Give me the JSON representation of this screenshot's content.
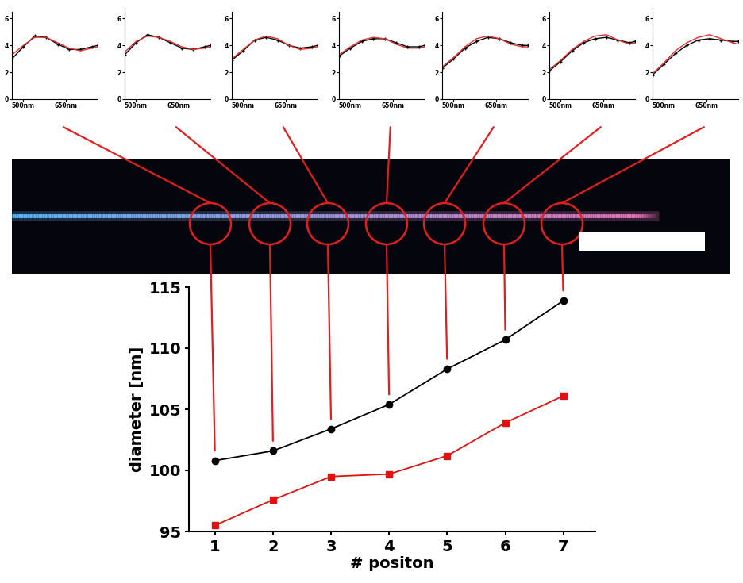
{
  "chart_data": [
    {
      "type": "line",
      "x": [
        460,
        500,
        540,
        580,
        620,
        660,
        700,
        740,
        760
      ],
      "xlim": [
        460,
        760
      ],
      "xticks": [
        {
          "value": 500,
          "label": "500nm"
        },
        {
          "value": 650,
          "label": "650nm"
        }
      ],
      "ylim": [
        0,
        6.5
      ],
      "yticks": [
        0,
        2,
        4,
        6
      ],
      "series": [
        {
          "color": "#000000",
          "marker": "plus",
          "values": [
            3.0,
            3.9,
            4.7,
            4.6,
            4.1,
            3.7,
            3.7,
            3.9,
            4.0
          ]
        },
        {
          "color": "#e03030",
          "marker": "none",
          "values": [
            3.3,
            4.0,
            4.6,
            4.6,
            4.2,
            3.8,
            3.6,
            3.8,
            3.9
          ]
        }
      ]
    },
    {
      "type": "line",
      "x": [
        460,
        500,
        540,
        580,
        620,
        660,
        700,
        740,
        760
      ],
      "xlim": [
        460,
        760
      ],
      "xticks": [
        {
          "value": 500,
          "label": "500nm"
        },
        {
          "value": 650,
          "label": "650nm"
        }
      ],
      "ylim": [
        0,
        6.5
      ],
      "yticks": [
        0,
        2,
        4,
        6
      ],
      "series": [
        {
          "color": "#000000",
          "marker": "plus",
          "values": [
            3.3,
            4.2,
            4.8,
            4.6,
            4.2,
            3.8,
            3.7,
            3.9,
            4.0
          ]
        },
        {
          "color": "#e03030",
          "marker": "none",
          "values": [
            3.5,
            4.3,
            4.7,
            4.6,
            4.3,
            3.9,
            3.7,
            3.8,
            3.9
          ]
        }
      ]
    },
    {
      "type": "line",
      "x": [
        460,
        500,
        540,
        580,
        620,
        660,
        700,
        740,
        760
      ],
      "xlim": [
        460,
        760
      ],
      "xticks": [
        {
          "value": 500,
          "label": "500nm"
        },
        {
          "value": 650,
          "label": "650nm"
        }
      ],
      "ylim": [
        0,
        6.5
      ],
      "yticks": [
        0,
        2,
        4,
        6
      ],
      "series": [
        {
          "color": "#000000",
          "marker": "plus",
          "values": [
            2.9,
            3.6,
            4.4,
            4.6,
            4.4,
            4.0,
            3.8,
            3.9,
            4.0
          ]
        },
        {
          "color": "#e03030",
          "marker": "none",
          "values": [
            3.0,
            3.7,
            4.4,
            4.7,
            4.5,
            4.0,
            3.7,
            3.8,
            3.9
          ]
        }
      ]
    },
    {
      "type": "line",
      "x": [
        460,
        500,
        540,
        580,
        620,
        660,
        700,
        740,
        760
      ],
      "xlim": [
        460,
        760
      ],
      "xticks": [
        {
          "value": 500,
          "label": "500nm"
        },
        {
          "value": 650,
          "label": "650nm"
        }
      ],
      "ylim": [
        0,
        6.5
      ],
      "yticks": [
        0,
        2,
        4,
        6
      ],
      "series": [
        {
          "color": "#000000",
          "marker": "plus",
          "values": [
            3.2,
            3.8,
            4.3,
            4.5,
            4.5,
            4.2,
            3.9,
            3.9,
            4.0
          ]
        },
        {
          "color": "#e03030",
          "marker": "none",
          "values": [
            3.3,
            3.9,
            4.4,
            4.6,
            4.5,
            4.1,
            3.8,
            3.8,
            3.9
          ]
        }
      ]
    },
    {
      "type": "line",
      "x": [
        460,
        500,
        540,
        580,
        620,
        660,
        700,
        740,
        760
      ],
      "xlim": [
        460,
        760
      ],
      "xticks": [
        {
          "value": 500,
          "label": "500nm"
        },
        {
          "value": 650,
          "label": "650nm"
        }
      ],
      "ylim": [
        0,
        6.5
      ],
      "yticks": [
        0,
        2,
        4,
        6
      ],
      "series": [
        {
          "color": "#000000",
          "marker": "plus",
          "values": [
            2.3,
            3.0,
            3.8,
            4.3,
            4.6,
            4.5,
            4.2,
            4.0,
            4.0
          ]
        },
        {
          "color": "#e03030",
          "marker": "none",
          "values": [
            2.4,
            3.1,
            3.9,
            4.5,
            4.7,
            4.5,
            4.1,
            3.9,
            3.9
          ]
        }
      ]
    },
    {
      "type": "line",
      "x": [
        460,
        500,
        540,
        580,
        620,
        660,
        700,
        740,
        760
      ],
      "xlim": [
        460,
        760
      ],
      "xticks": [
        {
          "value": 500,
          "label": "500nm"
        },
        {
          "value": 650,
          "label": "650nm"
        }
      ],
      "ylim": [
        0,
        6.5
      ],
      "yticks": [
        0,
        2,
        4,
        6
      ],
      "series": [
        {
          "color": "#000000",
          "marker": "plus",
          "values": [
            2.1,
            2.8,
            3.6,
            4.2,
            4.5,
            4.6,
            4.4,
            4.2,
            4.3
          ]
        },
        {
          "color": "#e03030",
          "marker": "none",
          "values": [
            2.2,
            2.9,
            3.7,
            4.3,
            4.7,
            4.8,
            4.4,
            4.1,
            4.2
          ]
        }
      ]
    },
    {
      "type": "line",
      "x": [
        460,
        500,
        540,
        580,
        620,
        660,
        700,
        740,
        760
      ],
      "xlim": [
        460,
        760
      ],
      "xticks": [
        {
          "value": 500,
          "label": "500nm"
        },
        {
          "value": 650,
          "label": "650nm"
        }
      ],
      "ylim": [
        0,
        6.5
      ],
      "yticks": [
        0,
        2,
        4,
        6
      ],
      "series": [
        {
          "color": "#000000",
          "marker": "plus",
          "values": [
            1.8,
            2.6,
            3.4,
            4.0,
            4.4,
            4.5,
            4.4,
            4.3,
            4.3
          ]
        },
        {
          "color": "#e03030",
          "marker": "none",
          "values": [
            1.9,
            2.7,
            3.6,
            4.2,
            4.6,
            4.8,
            4.5,
            4.2,
            4.1
          ]
        }
      ]
    },
    {
      "type": "line",
      "xlabel": "# positon",
      "ylabel": "diameter [nm]",
      "x": [
        1,
        2,
        3,
        4,
        5,
        6,
        7
      ],
      "xlim": [
        0.55,
        7.55
      ],
      "xticks": [
        1,
        2,
        3,
        4,
        5,
        6,
        7
      ],
      "ylim": [
        95,
        115
      ],
      "yticks": [
        95,
        100,
        105,
        110,
        115
      ],
      "series": [
        {
          "color": "#000000",
          "marker": "circle",
          "values": [
            100.8,
            101.6,
            103.4,
            105.4,
            108.3,
            110.7,
            113.9
          ]
        },
        {
          "color": "#e01010",
          "marker": "square",
          "values": [
            95.5,
            97.6,
            99.5,
            99.7,
            101.2,
            103.9,
            106.1
          ]
        }
      ]
    }
  ]
}
